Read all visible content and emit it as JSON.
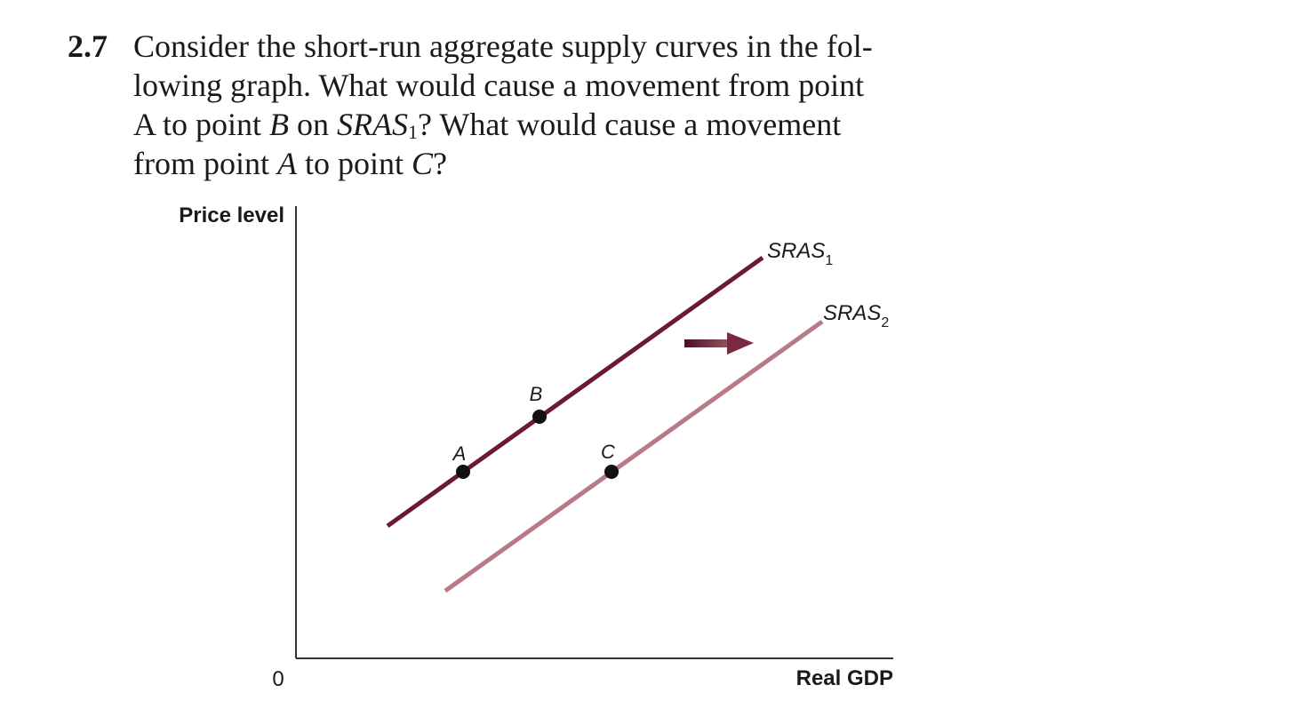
{
  "question": {
    "number": "2.7",
    "lines": [
      {
        "segments": [
          {
            "t": "Consider the short-run aggregate supply curves in the fol-"
          }
        ]
      },
      {
        "segments": [
          {
            "t": "lowing graph. What would cause a movement from point"
          }
        ]
      },
      {
        "segments": [
          {
            "t": "A to point "
          },
          {
            "t": "B",
            "italic": true
          },
          {
            "t": " on "
          },
          {
            "t": "SRAS",
            "italic": true
          },
          {
            "t": "1",
            "sub": true
          },
          {
            "t": "? What would cause a movement"
          }
        ]
      },
      {
        "segments": [
          {
            "t": "from point "
          },
          {
            "t": "A",
            "italic": true
          },
          {
            "t": " to point "
          },
          {
            "t": "C",
            "italic": true
          },
          {
            "t": "?"
          }
        ]
      }
    ]
  },
  "graph": {
    "y_axis_label": "Price level",
    "x_axis_label": "Real GDP",
    "origin_label": "0",
    "sras1": {
      "name": "SRAS",
      "subscript": "1",
      "color": "#6b1a33"
    },
    "sras2": {
      "name": "SRAS",
      "subscript": "2",
      "color": "#b87a84"
    },
    "arrow_color": "#7a2a40",
    "points": {
      "a": "A",
      "b": "B",
      "c": "C"
    }
  }
}
